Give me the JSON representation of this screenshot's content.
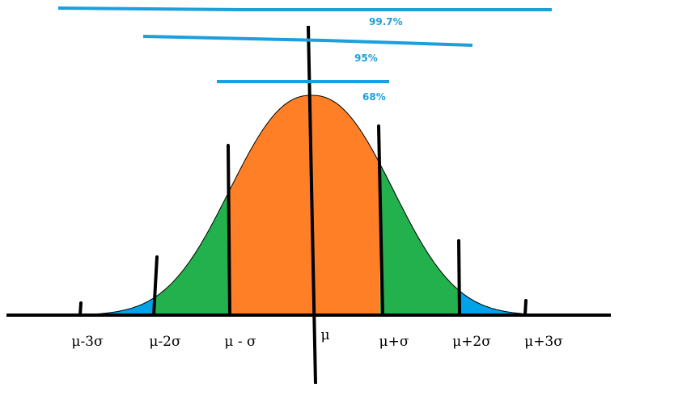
{
  "ranges": [
    "99.7%",
    "95%",
    "68%"
  ],
  "axis_labels": [
    "μ-3σ",
    "μ-2σ",
    "μ - σ",
    "μ",
    "μ+σ",
    "μ+2σ",
    "μ+3σ"
  ]
}
